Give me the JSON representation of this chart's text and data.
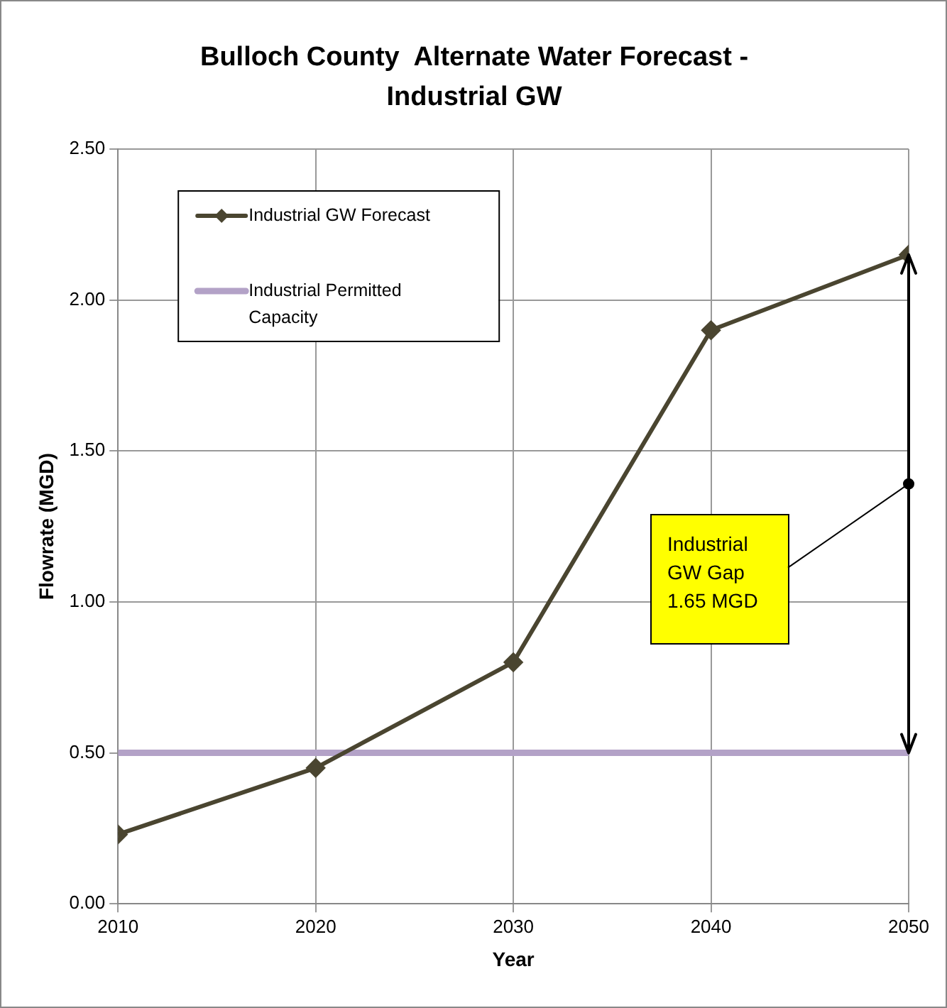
{
  "chart_data": {
    "type": "line",
    "title": "Bulloch County  Alternate Water Forecast - Industrial GW",
    "xlabel": "Year",
    "ylabel": "Flowrate (MGD)",
    "x": [
      2010,
      2020,
      2030,
      2040,
      2050
    ],
    "series": [
      {
        "name": "Industrial GW Forecast",
        "color": "#4a4530",
        "marker": "diamond",
        "values": [
          0.23,
          0.45,
          0.8,
          1.9,
          2.15
        ]
      },
      {
        "name": "Industrial Permitted Capacity",
        "color": "#b3a2c7",
        "marker": "none",
        "values": [
          0.5,
          0.5,
          0.5,
          0.5,
          0.5
        ]
      }
    ],
    "xlim": [
      2010,
      2050
    ],
    "xticks": [
      2010,
      2020,
      2030,
      2040,
      2050
    ],
    "ylim": [
      0,
      2.5
    ],
    "yticks": [
      {
        "value": 0,
        "label": "0.00"
      },
      {
        "value": 0.5,
        "label": "0.50"
      },
      {
        "value": 1,
        "label": "1.00"
      },
      {
        "value": 1.5,
        "label": "1.50"
      },
      {
        "value": 2,
        "label": "2.00"
      },
      {
        "value": 2.5,
        "label": "2.50"
      }
    ],
    "grid": true,
    "legend": "top left",
    "annotations": [
      "Industrial GW Gap 1.65 MGD"
    ]
  }
}
